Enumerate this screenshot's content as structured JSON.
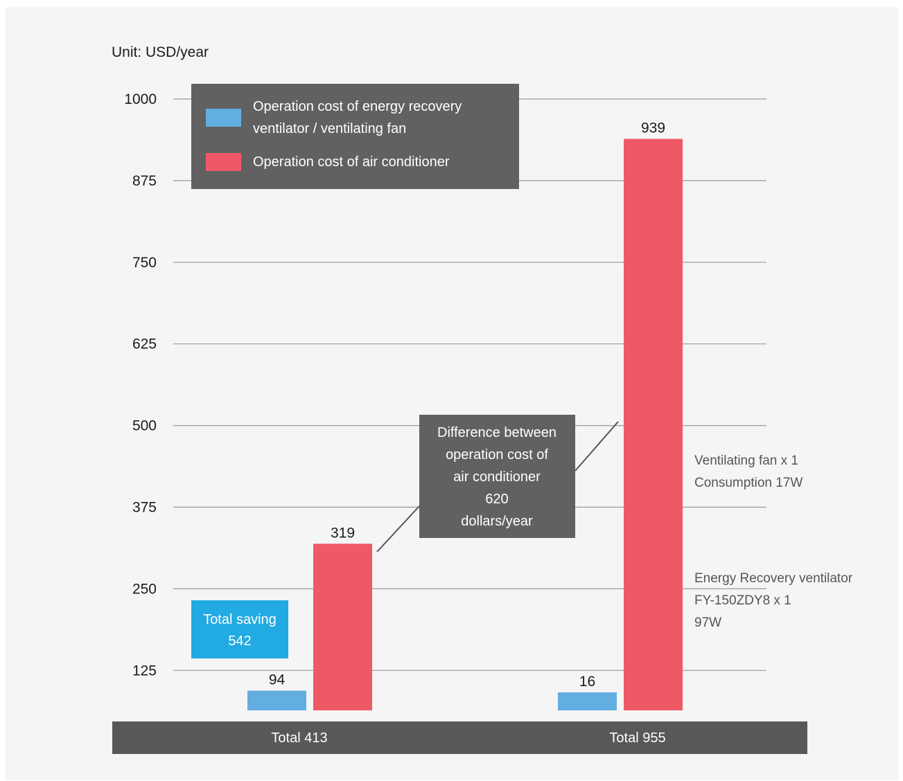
{
  "unit_label": "Unit: USD/year",
  "colors": {
    "panel_bg": "#f5f5f5",
    "grid": "#9a9a9a",
    "blue": "#63aee1",
    "red": "#ef5966",
    "dark_box": "#616161",
    "bottom_bar": "#57585a",
    "saving_box": "#22aae2"
  },
  "chart_data": {
    "type": "bar",
    "y_ticks": [
      125,
      250,
      375,
      500,
      625,
      750,
      875,
      1000
    ],
    "grid": true,
    "legend_position": "top-left",
    "series": [
      {
        "name": "Operation cost of energy recovery ventilator / ventilating fan",
        "color": "#63aee1",
        "values": [
          94,
          16
        ]
      },
      {
        "name": "Operation cost of air conditioner",
        "color": "#ef5966",
        "values": [
          319,
          939
        ]
      }
    ],
    "category_labels": [
      "Total 413",
      "Total 955"
    ]
  },
  "legend": {
    "entries": [
      {
        "lines": [
          "Operation cost of energy recovery",
          "ventilator / ventilating fan"
        ]
      },
      {
        "lines": [
          "Operation cost of air conditioner"
        ]
      }
    ]
  },
  "saving_box": {
    "lines": [
      "Total saving",
      "542"
    ]
  },
  "difference_box": {
    "lines": [
      "Difference between",
      "operation cost of",
      "air conditioner",
      "620",
      "dollars/year"
    ]
  },
  "side_notes": {
    "fan": [
      "Ventilating fan x 1",
      "Consumption 17W"
    ],
    "erv": [
      "Energy Recovery ventilator",
      "FY-150ZDY8 x 1",
      "97W"
    ]
  }
}
